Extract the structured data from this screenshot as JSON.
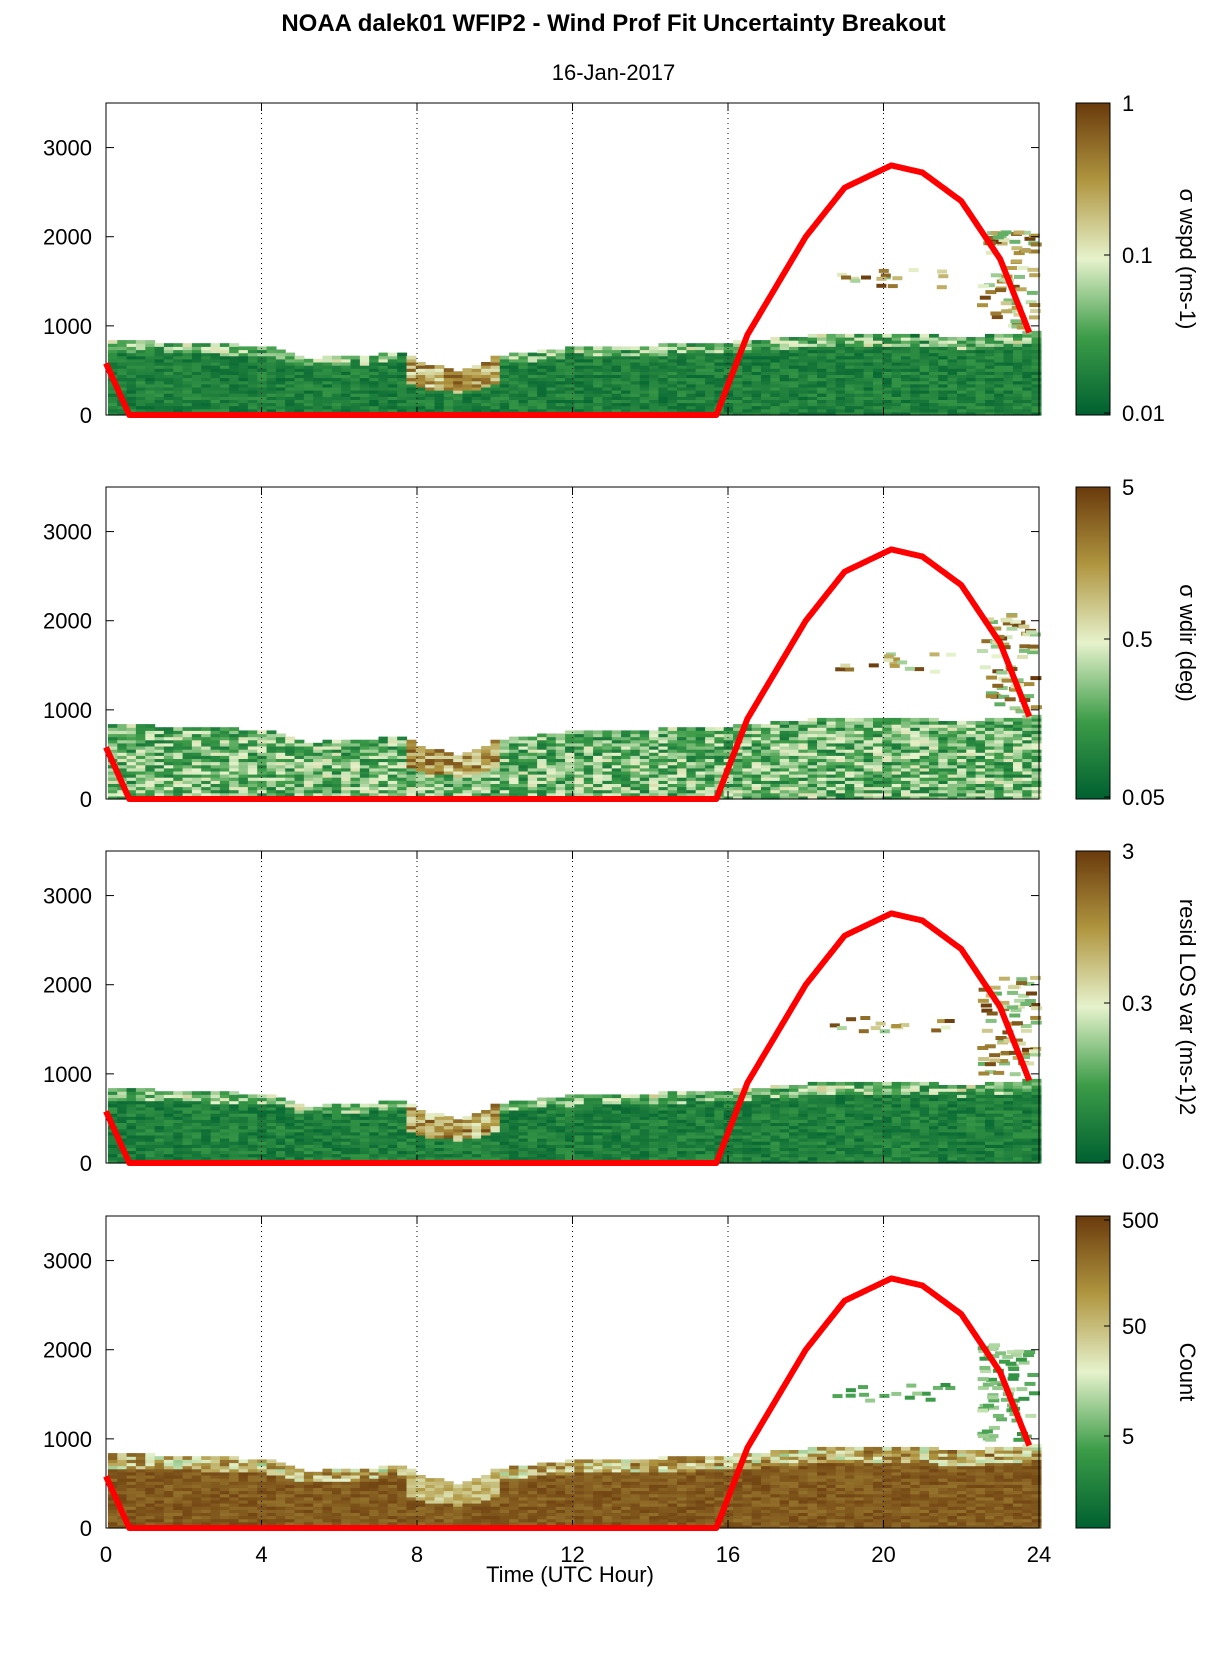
{
  "title": "NOAA dalek01 WFIP2 - Wind Prof Fit Uncertainty Breakout",
  "subtitle": "16-Jan-2017",
  "xlabel": "Time (UTC Hour)",
  "colors": {
    "sun_curve": "#ff0000",
    "low": "#006030",
    "mid_green": "#3c9c48",
    "light": "#e6f2cc",
    "tan": "#b09640",
    "high": "#6a3a0c"
  },
  "chart_data": [
    {
      "type": "heatmap",
      "panel": 1,
      "colorbar_label": "σ wspd (ms-1)",
      "colorbar_ticks": [
        "1",
        "0.1",
        "0.01"
      ],
      "colorbar_scale": "log",
      "colorbar_range": [
        0.01,
        1
      ],
      "xlim": [
        0,
        24
      ],
      "ylim": [
        0,
        3500
      ],
      "xticks": [
        0,
        4,
        8,
        12,
        16,
        20,
        24
      ],
      "yticks": [
        0,
        1000,
        2000,
        3000
      ],
      "grid": "vertical dotted at 4,8,12,16,20",
      "profile_top_m": [
        [
          0,
          820
        ],
        [
          1.5,
          800
        ],
        [
          4,
          760
        ],
        [
          5,
          620
        ],
        [
          6,
          640
        ],
        [
          7.5,
          680
        ],
        [
          8,
          580
        ],
        [
          9,
          480
        ],
        [
          10,
          650
        ],
        [
          12,
          750
        ],
        [
          14,
          770
        ],
        [
          16,
          800
        ],
        [
          18,
          880
        ],
        [
          20,
          900
        ],
        [
          22,
          860
        ],
        [
          23.8,
          920
        ]
      ],
      "dominant_level": "low"
    },
    {
      "type": "heatmap",
      "panel": 2,
      "colorbar_label": "σ wdir (deg)",
      "colorbar_ticks": [
        "5",
        "0.5",
        "0.05"
      ],
      "colorbar_scale": "log",
      "colorbar_range": [
        0.05,
        5
      ],
      "xlim": [
        0,
        24
      ],
      "ylim": [
        0,
        3500
      ],
      "xticks": [
        0,
        4,
        8,
        12,
        16,
        20,
        24
      ],
      "yticks": [
        0,
        1000,
        2000,
        3000
      ],
      "grid": "vertical dotted at 4,8,12,16,20",
      "profile_top_m": [
        [
          0,
          820
        ],
        [
          1.5,
          800
        ],
        [
          4,
          760
        ],
        [
          5,
          620
        ],
        [
          6,
          640
        ],
        [
          7.5,
          680
        ],
        [
          8,
          580
        ],
        [
          9,
          480
        ],
        [
          10,
          650
        ],
        [
          12,
          750
        ],
        [
          14,
          770
        ],
        [
          16,
          800
        ],
        [
          18,
          880
        ],
        [
          20,
          900
        ],
        [
          22,
          860
        ],
        [
          23.8,
          920
        ]
      ],
      "dominant_level": "mixed"
    },
    {
      "type": "heatmap",
      "panel": 3,
      "colorbar_label": "resid LOS var (ms-1)2",
      "colorbar_ticks": [
        "3",
        "0.3",
        "0.03"
      ],
      "colorbar_scale": "log",
      "colorbar_range": [
        0.03,
        3
      ],
      "xlim": [
        0,
        24
      ],
      "ylim": [
        0,
        3500
      ],
      "xticks": [
        0,
        4,
        8,
        12,
        16,
        20,
        24
      ],
      "yticks": [
        0,
        1000,
        2000,
        3000
      ],
      "grid": "vertical dotted at 4,8,12,16,20",
      "profile_top_m": [
        [
          0,
          820
        ],
        [
          1.5,
          800
        ],
        [
          4,
          760
        ],
        [
          5,
          620
        ],
        [
          6,
          640
        ],
        [
          7.5,
          680
        ],
        [
          8,
          580
        ],
        [
          9,
          480
        ],
        [
          10,
          650
        ],
        [
          12,
          750
        ],
        [
          14,
          770
        ],
        [
          16,
          800
        ],
        [
          18,
          880
        ],
        [
          20,
          900
        ],
        [
          22,
          860
        ],
        [
          23.8,
          920
        ]
      ],
      "dominant_level": "low"
    },
    {
      "type": "heatmap",
      "panel": 4,
      "colorbar_label": "Count",
      "colorbar_ticks": [
        "500",
        "50",
        "5"
      ],
      "colorbar_scale": "log",
      "colorbar_range": [
        1,
        500
      ],
      "xlim": [
        0,
        24
      ],
      "ylim": [
        0,
        3500
      ],
      "xticks": [
        0,
        4,
        8,
        12,
        16,
        20,
        24
      ],
      "yticks": [
        0,
        1000,
        2000,
        3000
      ],
      "xticklabels_shown": true,
      "grid": "vertical dotted at 4,8,12,16,20",
      "profile_top_m": [
        [
          0,
          820
        ],
        [
          1.5,
          800
        ],
        [
          4,
          760
        ],
        [
          5,
          620
        ],
        [
          6,
          640
        ],
        [
          7.5,
          680
        ],
        [
          8,
          580
        ],
        [
          9,
          480
        ],
        [
          10,
          650
        ],
        [
          12,
          750
        ],
        [
          14,
          770
        ],
        [
          16,
          800
        ],
        [
          18,
          880
        ],
        [
          20,
          900
        ],
        [
          22,
          860
        ],
        [
          23.8,
          920
        ]
      ],
      "dominant_level": "high"
    }
  ],
  "sun_curve": {
    "description_points_hour_m": [
      [
        0,
        580
      ],
      [
        0.6,
        0
      ],
      [
        15.7,
        0
      ],
      [
        16.5,
        900
      ],
      [
        18,
        2000
      ],
      [
        19,
        2550
      ],
      [
        20.2,
        2800
      ],
      [
        21,
        2720
      ],
      [
        22,
        2400
      ],
      [
        23,
        1750
      ],
      [
        23.8,
        870
      ]
    ]
  }
}
